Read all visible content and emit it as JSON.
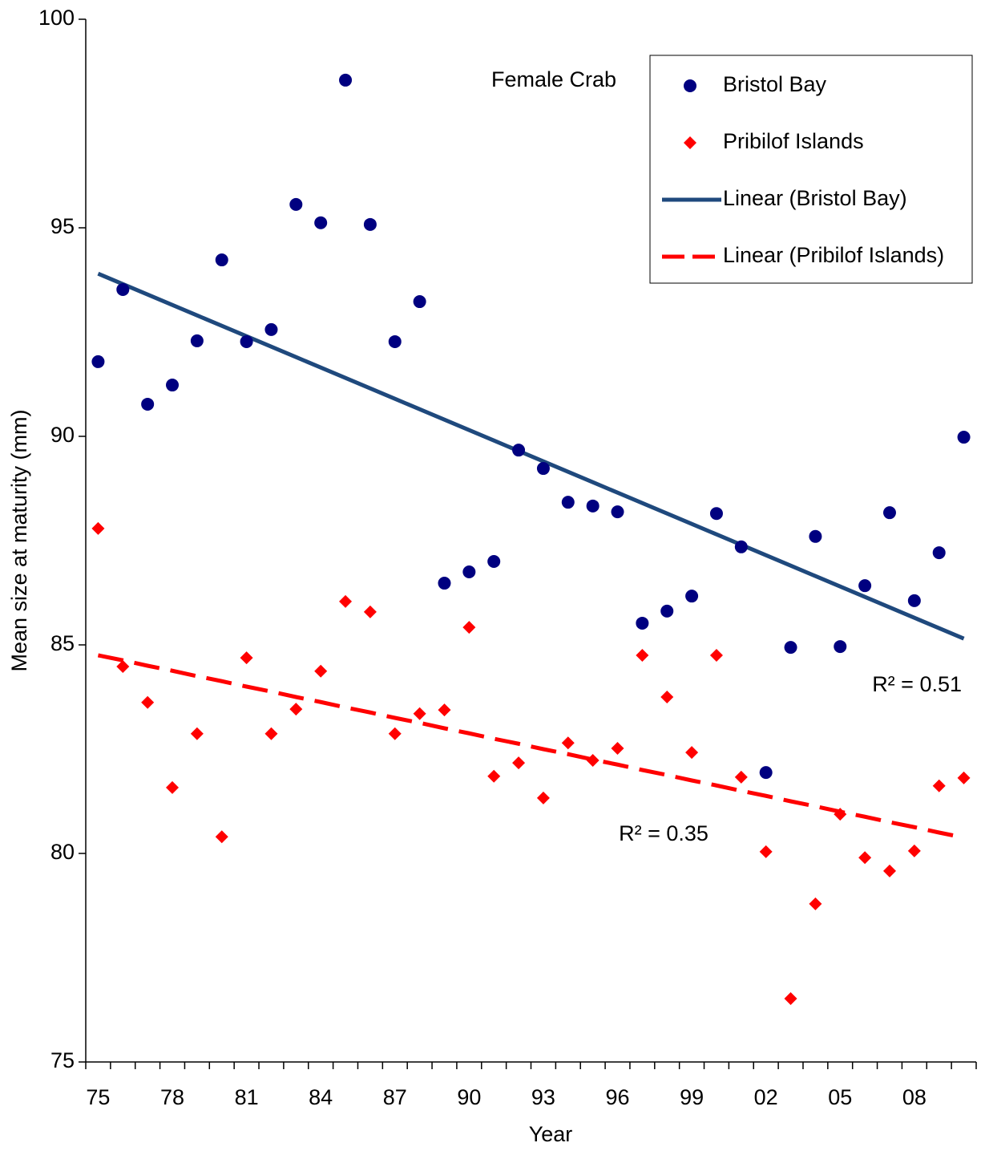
{
  "chart_data": {
    "type": "scatter",
    "x_label": "Year",
    "y_label": "Mean size at maturity (mm)",
    "categories": [
      "75",
      null,
      null,
      "78",
      null,
      null,
      "81",
      null,
      null,
      "84",
      null,
      null,
      "87",
      null,
      null,
      "90",
      null,
      null,
      "93",
      null,
      null,
      "96",
      null,
      null,
      "99",
      null,
      null,
      "02",
      null,
      null,
      "05",
      null,
      null,
      "08",
      null,
      null
    ],
    "ylim": [
      75,
      100
    ],
    "yticks": [
      75,
      80,
      85,
      90,
      95,
      100
    ],
    "series": [
      {
        "name": "Bristol Bay",
        "type": "scatter",
        "marker": "circle",
        "color": "#000080",
        "values": [
          91.79,
          93.52,
          90.77,
          91.23,
          92.29,
          94.23,
          92.27,
          92.56,
          95.56,
          95.12,
          98.54,
          95.08,
          92.27,
          93.23,
          86.48,
          86.75,
          87.0,
          89.67,
          89.23,
          88.42,
          88.33,
          88.19,
          85.52,
          85.81,
          86.17,
          88.15,
          87.35,
          81.94,
          84.94,
          87.6,
          84.96,
          86.42,
          88.17,
          86.06,
          87.21,
          89.98
        ]
      },
      {
        "name": "Pribilof Islands",
        "type": "scatter",
        "marker": "diamond",
        "color": "#ff0000",
        "values": [
          87.79,
          84.48,
          83.62,
          81.58,
          82.87,
          80.4,
          84.69,
          82.87,
          83.46,
          84.37,
          86.04,
          85.79,
          82.87,
          83.35,
          83.44,
          85.42,
          81.85,
          82.17,
          81.33,
          82.65,
          82.23,
          82.52,
          84.75,
          83.75,
          82.42,
          84.75,
          81.83,
          80.04,
          76.52,
          78.79,
          80.94,
          79.9,
          79.58,
          80.06,
          81.62,
          81.81
        ]
      },
      {
        "name": "Linear (Bristol Bay)",
        "type": "line",
        "dashed": false,
        "color": "#1f497d",
        "values": [
          93.9,
          93.65,
          93.4,
          93.15,
          92.9,
          92.65,
          92.4,
          92.15,
          91.9,
          91.65,
          91.4,
          91.15,
          90.9,
          90.65,
          90.4,
          90.15,
          89.9,
          89.65,
          89.4,
          89.15,
          88.9,
          88.65,
          88.4,
          88.15,
          87.9,
          87.65,
          87.4,
          87.15,
          86.9,
          86.65,
          86.4,
          86.15,
          85.9,
          85.65,
          85.4,
          85.15
        ]
      },
      {
        "name": "Linear (Pribilof Islands)",
        "type": "line",
        "dashed": true,
        "color": "#ff0000",
        "values": [
          84.75,
          84.63,
          84.5,
          84.38,
          84.25,
          84.13,
          84.0,
          83.88,
          83.75,
          83.63,
          83.5,
          83.38,
          83.25,
          83.13,
          83.0,
          82.88,
          82.75,
          82.63,
          82.5,
          82.38,
          82.25,
          82.13,
          82.0,
          81.88,
          81.75,
          81.63,
          81.5,
          81.38,
          81.25,
          81.13,
          81.0,
          80.88,
          80.75,
          80.63,
          80.5,
          80.38
        ]
      }
    ],
    "annotations": [
      "Female Crab",
      "R² = 0.51",
      "R² = 0.35"
    ]
  }
}
